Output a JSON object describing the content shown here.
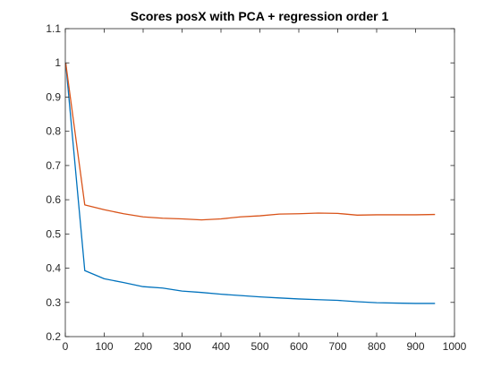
{
  "chart_data": {
    "type": "line",
    "title": "Scores posX with PCA + regression order 1",
    "xlabel": "",
    "ylabel": "",
    "xlim": [
      0,
      1000
    ],
    "ylim": [
      0.2,
      1.1
    ],
    "xticks": [
      0,
      100,
      200,
      300,
      400,
      500,
      600,
      700,
      800,
      900,
      1000
    ],
    "yticks": [
      0.2,
      0.3,
      0.4,
      0.5,
      0.6,
      0.7,
      0.8,
      0.9,
      1,
      1.1
    ],
    "xtick_labels": [
      "0",
      "100",
      "200",
      "300",
      "400",
      "500",
      "600",
      "700",
      "800",
      "900",
      "1000"
    ],
    "ytick_labels": [
      "0.2",
      "0.3",
      "0.4",
      "0.5",
      "0.6",
      "0.7",
      "0.8",
      "0.9",
      "1",
      "1.1"
    ],
    "grid": false,
    "legend": "none",
    "x": [
      1,
      50,
      100,
      150,
      200,
      250,
      300,
      350,
      400,
      450,
      500,
      550,
      600,
      650,
      700,
      750,
      800,
      850,
      900,
      950
    ],
    "series": [
      {
        "color": "#0072BD",
        "values": [
          1.0,
          0.393,
          0.369,
          0.358,
          0.346,
          0.342,
          0.333,
          0.329,
          0.324,
          0.32,
          0.316,
          0.313,
          0.31,
          0.308,
          0.306,
          0.302,
          0.299,
          0.298,
          0.297,
          0.297
        ]
      },
      {
        "color": "#D95319",
        "values": [
          1.0,
          0.585,
          0.571,
          0.559,
          0.55,
          0.546,
          0.544,
          0.541,
          0.544,
          0.55,
          0.553,
          0.558,
          0.559,
          0.561,
          0.56,
          0.555,
          0.556,
          0.556,
          0.556,
          0.557
        ]
      }
    ]
  }
}
